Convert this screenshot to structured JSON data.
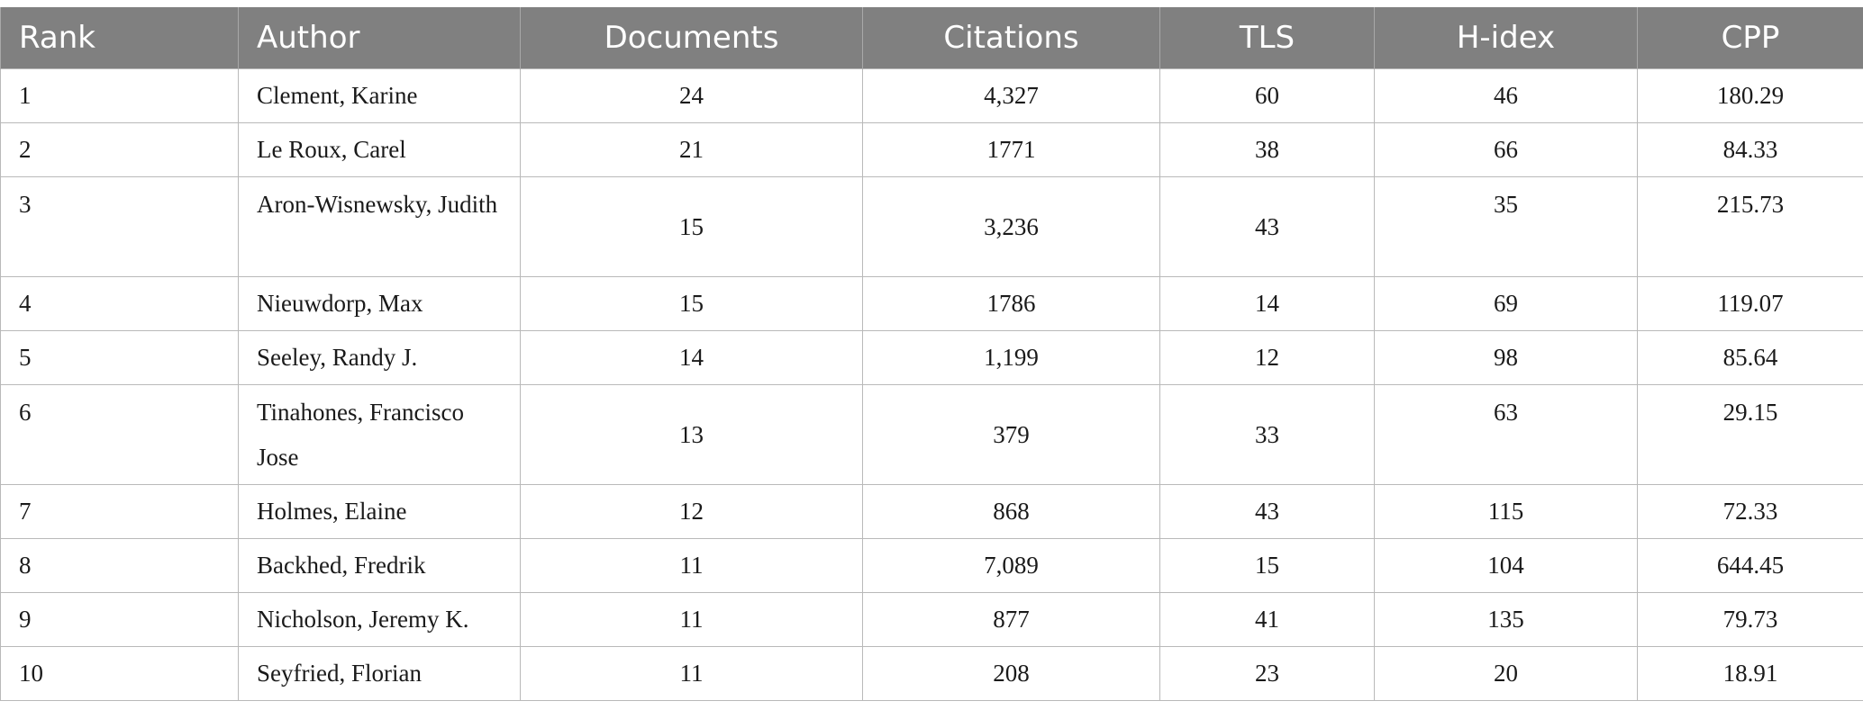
{
  "table": {
    "headers": {
      "rank": "Rank",
      "author": "Author",
      "documents": "Documents",
      "citations": "Citations",
      "tls": "TLS",
      "hindex": "H-idex",
      "cpp": "CPP"
    },
    "rows": [
      {
        "rank": "1",
        "author": "Clement, Karine",
        "documents": "24",
        "citations": "4,327",
        "tls": "60",
        "hindex": "46",
        "cpp": "180.29"
      },
      {
        "rank": "2",
        "author": "Le Roux, Carel",
        "documents": "21",
        "citations": "1771",
        "tls": "38",
        "hindex": "66",
        "cpp": "84.33"
      },
      {
        "rank": "3",
        "author": "Aron-Wisnewsky, Judith",
        "documents": "15",
        "citations": "3,236",
        "tls": "43",
        "hindex": "35",
        "cpp": "215.73"
      },
      {
        "rank": "4",
        "author": "Nieuwdorp, Max",
        "documents": "15",
        "citations": "1786",
        "tls": "14",
        "hindex": "69",
        "cpp": "119.07"
      },
      {
        "rank": "5",
        "author": "Seeley, Randy J.",
        "documents": "14",
        "citations": "1,199",
        "tls": "12",
        "hindex": "98",
        "cpp": "85.64"
      },
      {
        "rank": "6",
        "author": "Tinahones, Francisco Jose",
        "documents": "13",
        "citations": "379",
        "tls": "33",
        "hindex": "63",
        "cpp": "29.15"
      },
      {
        "rank": "7",
        "author": "Holmes, Elaine",
        "documents": "12",
        "citations": "868",
        "tls": "43",
        "hindex": "115",
        "cpp": "72.33"
      },
      {
        "rank": "8",
        "author": "Backhed, Fredrik",
        "documents": "11",
        "citations": "7,089",
        "tls": "15",
        "hindex": "104",
        "cpp": "644.45"
      },
      {
        "rank": "9",
        "author": "Nicholson, Jeremy K.",
        "documents": "11",
        "citations": "877",
        "tls": "41",
        "hindex": "135",
        "cpp": "79.73"
      },
      {
        "rank": "10",
        "author": "Seyfried, Florian",
        "documents": "11",
        "citations": "208",
        "tls": "23",
        "hindex": "20",
        "cpp": "18.91"
      }
    ]
  }
}
